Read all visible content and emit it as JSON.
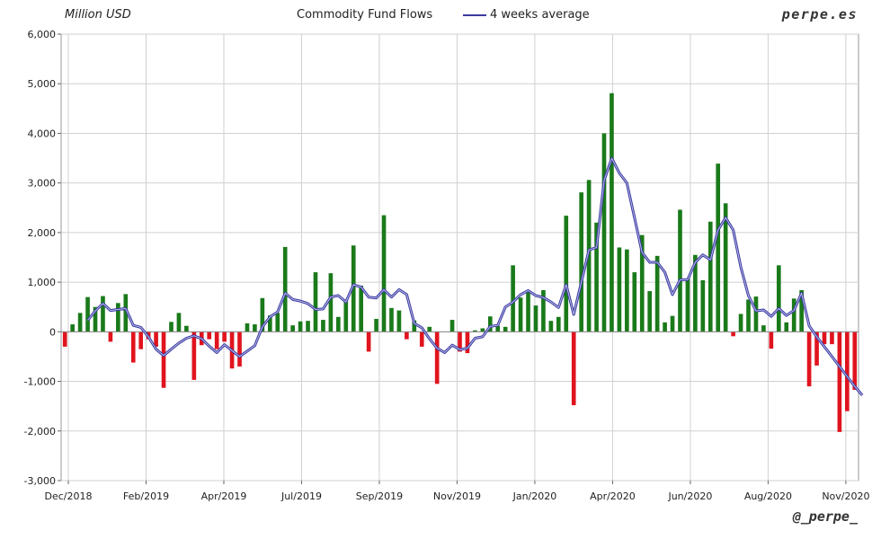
{
  "header": {
    "unit_label": "Million USD",
    "title": "Commodity Fund Flows",
    "legend_label": "4 weeks average",
    "brand": "perpe.es"
  },
  "footer": {
    "handle": "@_perpe_"
  },
  "colors": {
    "positive": "#1a7a1a",
    "negative": "#e0141e",
    "average_line": "#3a3aa0",
    "grid": "#d0d0d0"
  },
  "chart_data": {
    "type": "bar",
    "title": "Commodity Fund Flows",
    "ylabel": "Million USD",
    "ylim": [
      -3000,
      6000
    ],
    "yticks": [
      -3000,
      -2000,
      -1000,
      0,
      1000,
      2000,
      3000,
      4000,
      5000,
      6000
    ],
    "ytick_labels": [
      "-3,000",
      "-2,000",
      "-1,000",
      "0",
      "1,000",
      "2,000",
      "3,000",
      "4,000",
      "5,000",
      "6,000"
    ],
    "grid": true,
    "x_ticks": [
      "Dec/2018",
      "Feb/2019",
      "Apr/2019",
      "Jul/2019",
      "Sep/2019",
      "Nov/2019",
      "Jan/2020",
      "Apr/2020",
      "Jun/2020",
      "Aug/2020",
      "Nov/2020"
    ],
    "series": [
      {
        "name": "Commodity Fund Flows",
        "type": "bar",
        "values": [
          -300,
          150,
          380,
          700,
          500,
          720,
          -200,
          580,
          760,
          -620,
          -350,
          -150,
          -300,
          -1130,
          200,
          380,
          120,
          -970,
          -270,
          -150,
          -350,
          -200,
          -740,
          -700,
          170,
          150,
          680,
          330,
          380,
          1710,
          130,
          210,
          220,
          1200,
          240,
          1180,
          300,
          620,
          1740,
          930,
          -400,
          260,
          2350,
          480,
          430,
          -150,
          230,
          -300,
          100,
          -1050,
          0,
          240,
          -400,
          -430,
          30,
          70,
          310,
          120,
          100,
          1340,
          690,
          820,
          530,
          840,
          220,
          300,
          2340,
          -1480,
          2810,
          3060,
          2200,
          4000,
          4810,
          1700,
          1660,
          1200,
          1950,
          820,
          1530,
          190,
          320,
          2460,
          1070,
          1550,
          1040,
          2220,
          3390,
          2590,
          -90,
          360,
          650,
          710,
          130,
          -340,
          1340,
          190,
          670,
          840,
          -1100,
          -680,
          -250,
          -250,
          -2020,
          -1600,
          -1170
        ]
      },
      {
        "name": "4 weeks average",
        "type": "line",
        "values": [
          null,
          null,
          null,
          230,
          420,
          570,
          430,
          450,
          470,
          130,
          90,
          -100,
          -350,
          -480,
          -350,
          -230,
          -130,
          -80,
          -140,
          -290,
          -420,
          -260,
          -380,
          -500,
          -390,
          -280,
          100,
          300,
          400,
          780,
          650,
          620,
          570,
          450,
          460,
          700,
          730,
          600,
          950,
          900,
          700,
          680,
          850,
          700,
          850,
          750,
          170,
          80,
          -140,
          -330,
          -420,
          -270,
          -360,
          -330,
          -130,
          -100,
          110,
          130,
          500,
          600,
          750,
          830,
          730,
          690,
          600,
          490,
          950,
          350,
          1000,
          1650,
          1700,
          3050,
          3500,
          3200,
          3000,
          2300,
          1600,
          1400,
          1400,
          1200,
          750,
          1050,
          1050,
          1400,
          1550,
          1450,
          2050,
          2300,
          2050,
          1300,
          730,
          420,
          440,
          310,
          470,
          330,
          430,
          780,
          120,
          -100,
          -300,
          -500,
          -700,
          -900,
          -1100,
          -1280
        ]
      }
    ]
  }
}
